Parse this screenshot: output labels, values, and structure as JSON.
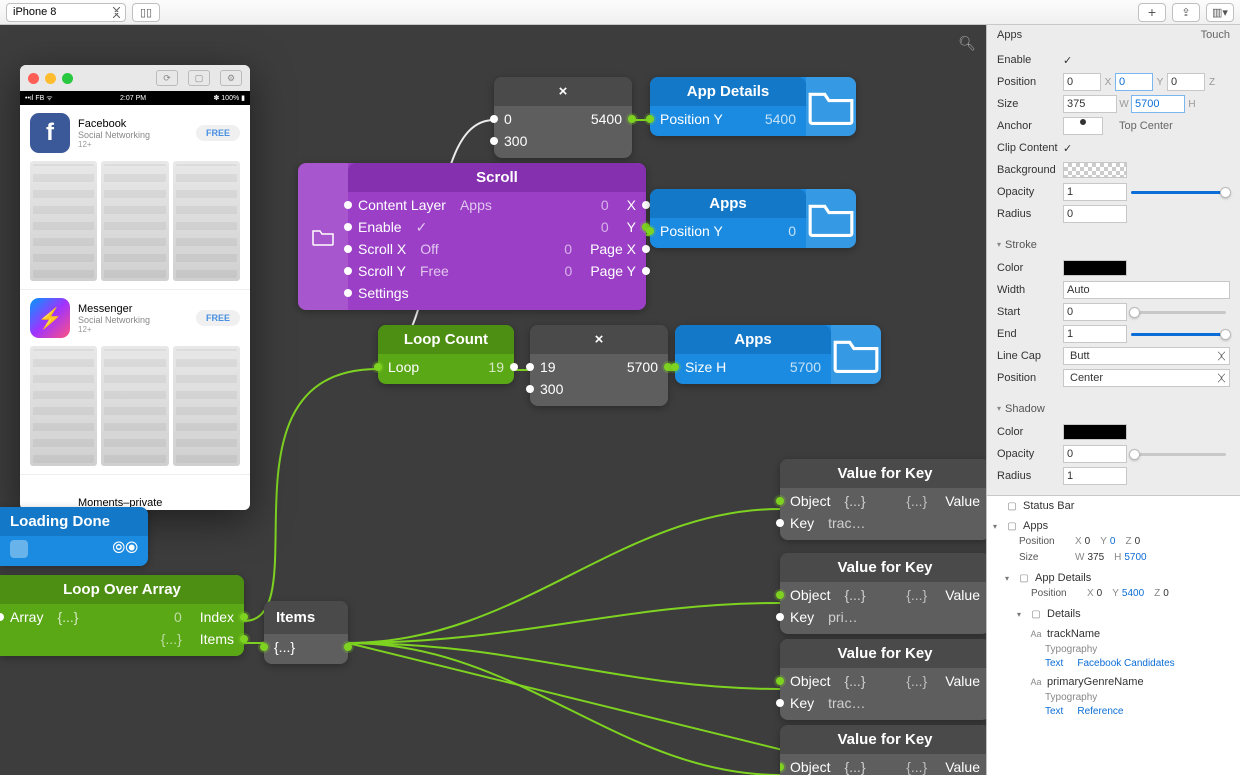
{
  "toolbar": {
    "device": "iPhone 8"
  },
  "preview": {
    "statusbar": {
      "left": "••ıl FB ᯤ",
      "center": "2:07 PM",
      "right": "✽ 100% ▮"
    },
    "apps": [
      {
        "name": "Facebook",
        "genre": "Social Networking",
        "age": "12+",
        "btn": "FREE"
      },
      {
        "name": "Messenger",
        "genre": "Social Networking",
        "age": "12+",
        "btn": "FREE"
      }
    ],
    "last": "Moments–private"
  },
  "nodes": {
    "val1": {
      "r1a": "0",
      "r1b": "5400",
      "r2": "300"
    },
    "appDetails": {
      "title": "App Details",
      "row": "Position Y",
      "val": "5400"
    },
    "scroll": {
      "title": "Scroll",
      "rows": [
        {
          "l": "Content Layer",
          "lv": "Apps",
          "rv": "0",
          "r": "X"
        },
        {
          "l": "Enable",
          "lv": "✓",
          "rv": "0",
          "r": "Y"
        },
        {
          "l": "Scroll X",
          "lv": "Off",
          "rv": "0",
          "r": "Page X"
        },
        {
          "l": "Scroll Y",
          "lv": "Free",
          "rv": "0",
          "r": "Page Y"
        },
        {
          "l": "Settings"
        }
      ]
    },
    "apps1": {
      "title": "Apps",
      "row": "Position Y",
      "val": "0"
    },
    "loopCount": {
      "title": "Loop Count",
      "l": "Loop",
      "v": "19"
    },
    "val2": {
      "r1a": "19",
      "r1b": "5700",
      "r2": "300"
    },
    "apps2": {
      "title": "Apps",
      "row": "Size H",
      "val": "5700"
    },
    "loadingDone": {
      "title": "Loading Done"
    },
    "loopOver": {
      "title": "Loop Over Array",
      "l": "Array",
      "lv": "{...}",
      "r1v": "0",
      "r1": "Index",
      "r2v": "{...}",
      "r2": "Items"
    },
    "items": {
      "title": "Items",
      "v": "{...}"
    },
    "vfk": {
      "title": "Value for Key",
      "obj": "Object",
      "objv": "{...}",
      "outv": "{...}",
      "out": "Value",
      "key": "Key",
      "k1": "trac…",
      "k2": "pri…",
      "k3": "trac…"
    }
  },
  "positions": {
    "val1": [
      494,
      52,
      138
    ],
    "appDetails": [
      650,
      52,
      206
    ],
    "scroll": [
      298,
      138,
      348
    ],
    "apps1": [
      650,
      164,
      206
    ],
    "loopCount": [
      378,
      300,
      136
    ],
    "val2": [
      530,
      300,
      138
    ],
    "apps2": [
      675,
      300,
      206
    ],
    "loadingDone": [
      0,
      482,
      148
    ],
    "loopOver": [
      0,
      550,
      244
    ],
    "items": [
      264,
      576,
      84
    ],
    "vfk1": [
      780,
      434,
      210
    ],
    "vfk2": [
      780,
      528,
      210
    ],
    "vfk3": [
      780,
      614,
      210
    ],
    "vfk4": [
      780,
      700,
      210
    ]
  },
  "colors": {
    "canvas": "#3d3d3d",
    "purple": "#9b3fc7",
    "blue": "#1a8be0",
    "green": "#5ba817",
    "grey": "#5e5e5e",
    "wire_green": "#7ed321",
    "wire_white": "#ffffff",
    "accent_blue": "#0b6dd7"
  },
  "inspector": {
    "title": "Apps",
    "touch": "Touch",
    "enable": "✓",
    "pos": {
      "x": "0",
      "y": "0",
      "z": "0"
    },
    "size": {
      "w": "375",
      "h": "5700"
    },
    "anchor": "Top Center",
    "clip": "✓",
    "opacity": "1",
    "radius": "0",
    "stroke": {
      "color": "#000000",
      "width": "Auto",
      "start": "0",
      "end": "1",
      "cap": "Butt",
      "pos": "Center"
    },
    "shadow": {
      "color": "#000000",
      "opacity": "0",
      "radius": "1"
    },
    "labels": {
      "enable": "Enable",
      "position": "Position",
      "size": "Size",
      "anchor": "Anchor",
      "clip": "Clip Content",
      "background": "Background",
      "opacity": "Opacity",
      "radius": "Radius",
      "stroke": "Stroke",
      "color": "Color",
      "width": "Width",
      "start": "Start",
      "end": "End",
      "linecap": "Line Cap",
      "spos": "Position",
      "shadow": "Shadow"
    }
  },
  "layers": {
    "statusbar": "Status Bar",
    "apps": {
      "name": "Apps",
      "pos": {
        "x": "0",
        "y": "0",
        "z": "0"
      },
      "size": {
        "w": "375",
        "h": "5700"
      }
    },
    "appDetails": {
      "name": "App Details",
      "pos": {
        "x": "0",
        "y": "5400",
        "z": "0"
      }
    },
    "details": "Details",
    "f1": {
      "name": "trackName",
      "attr": "Typography",
      "l1": "Text",
      "l2": "Facebook Candidates"
    },
    "f2": {
      "name": "primaryGenreName",
      "attr": "Typography",
      "l1": "Text",
      "l2": "Reference"
    },
    "lbl": {
      "pos": "Position",
      "size": "Size",
      "x": "X",
      "y": "Y",
      "z": "Z",
      "w": "W",
      "h": "H"
    }
  }
}
